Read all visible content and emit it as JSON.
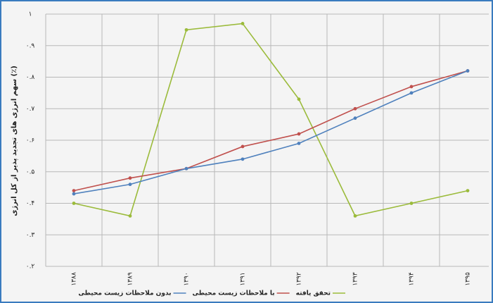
{
  "chart_data": {
    "type": "line",
    "y_label": "سهم انرژی های تجدید پذیر از کل انرژی (٪)",
    "categories": [
      "۱۳۸۸",
      "۱۳۸۹",
      "۱۳۹۰",
      "۱۳۹۱",
      "۱۳۹۲",
      "۱۳۹۳",
      "۱۳۹۴",
      "۱۳۹۵"
    ],
    "series": [
      {
        "name": "تحقق یافته",
        "color": "#9bbb3b",
        "values": [
          0.4,
          0.36,
          0.95,
          0.97,
          0.73,
          0.36,
          0.4,
          0.44
        ]
      },
      {
        "name": "با ملاحظات زیست محیطی",
        "color": "#c0504d",
        "values": [
          0.44,
          0.48,
          0.51,
          0.58,
          0.62,
          0.7,
          0.77,
          0.82
        ]
      },
      {
        "name": "بدون ملاحظات زیست محیطی",
        "color": "#4f81bd",
        "values": [
          0.43,
          0.46,
          0.51,
          0.54,
          0.59,
          0.67,
          0.75,
          0.82
        ]
      }
    ],
    "ylim": [
      0.2,
      1
    ],
    "yticks": [
      {
        "value": 0.2,
        "label": "۰.۲"
      },
      {
        "value": 0.3,
        "label": "۰.۳"
      },
      {
        "value": 0.4,
        "label": "۰.۴"
      },
      {
        "value": 0.5,
        "label": "۰.۵"
      },
      {
        "value": 0.6,
        "label": "۰.۶"
      },
      {
        "value": 0.7,
        "label": "۰.۷"
      },
      {
        "value": 0.8,
        "label": "۰.۸"
      },
      {
        "value": 0.9,
        "label": "۰.۹"
      },
      {
        "value": 1,
        "label": "۱"
      }
    ],
    "grid": true
  }
}
